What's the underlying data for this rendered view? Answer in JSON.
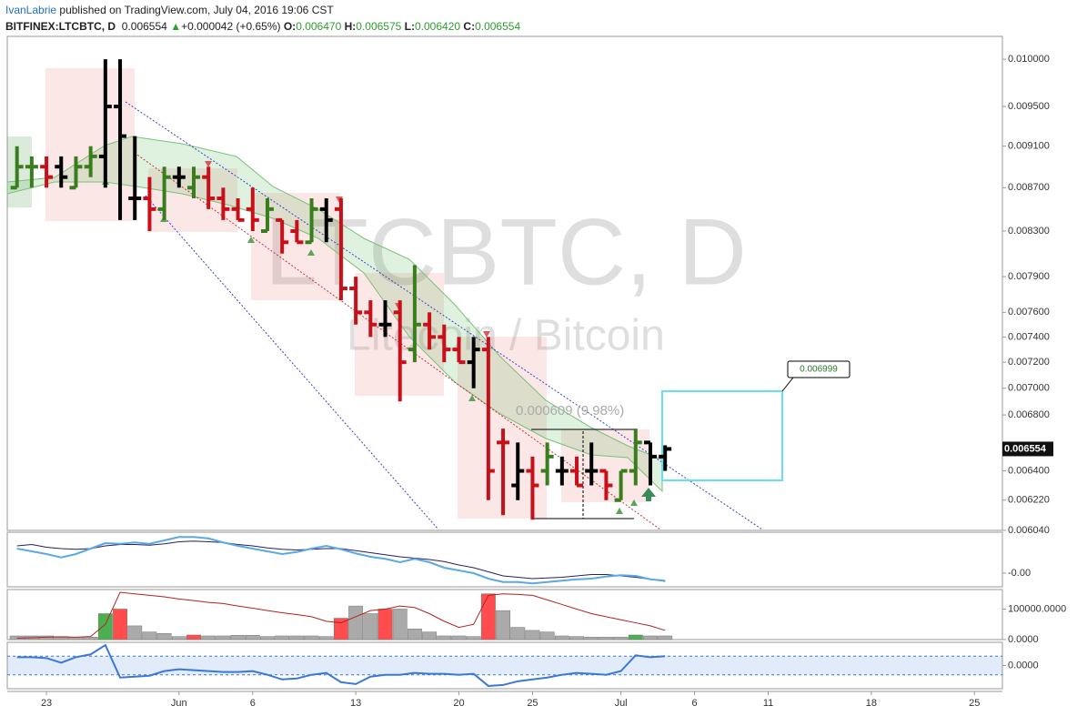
{
  "header": {
    "author": "IvanLabrie",
    "published": "published on TradingView.com, July 04, 2016 19:06 CST"
  },
  "legend": {
    "symbol": "BITFINEX:LTCBTC, D",
    "last": "0.006554",
    "change": "+0.000042 (+0.65%)",
    "open_label": "O:",
    "open": "0.006470",
    "high_label": "H:",
    "high": "0.006575",
    "low_label": "L:",
    "low": "0.006420",
    "close_label": "C:",
    "close": "0.006554"
  },
  "chart_data": [
    {
      "type": "ohlc",
      "watermark": "LTCBTC, D",
      "watermark_sub": "Litecoin / Bitcoin",
      "log": true,
      "x": [
        -2,
        -1,
        0,
        1,
        2,
        3,
        4,
        5,
        6,
        7,
        8,
        9,
        10,
        11,
        12,
        13,
        14,
        15,
        16,
        17,
        18,
        19,
        20,
        21,
        22,
        23,
        24,
        25,
        26,
        27,
        28,
        29,
        30,
        31,
        32,
        33,
        34,
        35,
        36,
        37,
        38,
        39,
        40,
        41,
        42
      ],
      "open": [
        0.0087,
        0.0089,
        0.0089,
        0.0089,
        0.0087,
        0.0089,
        0.009,
        0.0095,
        0.0086,
        0.0086,
        0.0085,
        0.0088,
        0.0087,
        0.0088,
        0.0086,
        0.0085,
        0.0085,
        0.0083,
        0.0084,
        0.0083,
        0.0082,
        0.0085,
        0.0085,
        0.0078,
        0.0076,
        0.0075,
        0.0076,
        0.0073,
        0.0075,
        0.0074,
        0.0073,
        0.0072,
        0.0073,
        0.0066,
        0.0063,
        0.0064,
        0.0064,
        0.0064,
        0.0064,
        0.0064,
        0.0064,
        0.0062,
        0.0064,
        0.0066,
        0.0065
      ],
      "high": [
        0.0091,
        0.009,
        0.009,
        0.009,
        0.009,
        0.0091,
        0.01,
        0.01,
        0.0092,
        0.0088,
        0.0089,
        0.0089,
        0.0089,
        0.0089,
        0.0087,
        0.0086,
        0.0087,
        0.0086,
        0.0084,
        0.0084,
        0.0086,
        0.0086,
        0.0086,
        0.0079,
        0.0077,
        0.0077,
        0.0077,
        0.008,
        0.0076,
        0.0075,
        0.0074,
        0.0074,
        0.0074,
        0.0067,
        0.0066,
        0.0065,
        0.0066,
        0.0065,
        0.0065,
        0.0066,
        0.0064,
        0.0064,
        0.0067,
        0.0066,
        0.00658
      ],
      "low": [
        0.0087,
        0.0087,
        0.0087,
        0.0087,
        0.0087,
        0.0088,
        0.0087,
        0.0084,
        0.0084,
        0.0083,
        0.0084,
        0.0087,
        0.0086,
        0.0085,
        0.0084,
        0.0084,
        0.0083,
        0.0083,
        0.0081,
        0.0082,
        0.0082,
        0.0082,
        0.0077,
        0.0075,
        0.0074,
        0.0074,
        0.0069,
        0.0072,
        0.0073,
        0.0072,
        0.0072,
        0.007,
        0.0062,
        0.0061,
        0.0062,
        0.00607,
        0.0063,
        0.0063,
        0.0063,
        0.0063,
        0.0062,
        0.0062,
        0.0063,
        0.0063,
        0.0064
      ],
      "close": [
        0.0089,
        0.0089,
        0.0088,
        0.0088,
        0.0089,
        0.009,
        0.0095,
        0.0092,
        0.0086,
        0.0085,
        0.0088,
        0.0088,
        0.0088,
        0.0086,
        0.0085,
        0.0084,
        0.0084,
        0.0085,
        0.0082,
        0.0082,
        0.0085,
        0.0084,
        0.0078,
        0.0076,
        0.0075,
        0.0075,
        0.0072,
        0.0075,
        0.0074,
        0.0073,
        0.0072,
        0.0073,
        0.0064,
        0.0066,
        0.0064,
        0.0063,
        0.0065,
        0.0064,
        0.0063,
        0.0064,
        0.0063,
        0.0064,
        0.0066,
        0.0065,
        0.006554
      ],
      "colors": [
        "#3a7d1e",
        "#3a7d1e",
        "#c8101a",
        "#000000",
        "#3a7d1e",
        "#3a7d1e",
        "#000000",
        "#000000",
        "#000000",
        "#c8101a",
        "#3a7d1e",
        "#000000",
        "#3a7d1e",
        "#c8101a",
        "#c8101a",
        "#c8101a",
        "#c8101a",
        "#3a7d1e",
        "#c8101a",
        "#c8101a",
        "#3a7d1e",
        "#000000",
        "#c8101a",
        "#c8101a",
        "#c8101a",
        "#000000",
        "#c8101a",
        "#3a7d1e",
        "#c8101a",
        "#c8101a",
        "#c8101a",
        "#000000",
        "#c8101a",
        "#c8101a",
        "#000000",
        "#c8101a",
        "#3a7d1e",
        "#000000",
        "#c8101a",
        "#000000",
        "#c8101a",
        "#3a7d1e",
        "#3a7d1e",
        "#000000",
        "#000000"
      ],
      "ylim": [
        0.006,
        0.0102
      ],
      "yticks": [
        {
          "value": 0.01,
          "label": "0.010000"
        },
        {
          "value": 0.0095,
          "label": "0.009500"
        },
        {
          "value": 0.0091,
          "label": "0.009100"
        },
        {
          "value": 0.0087,
          "label": "0.008700"
        },
        {
          "value": 0.0083,
          "label": "0.008300"
        },
        {
          "value": 0.0079,
          "label": "0.007900"
        },
        {
          "value": 0.0076,
          "label": "0.007600"
        },
        {
          "value": 0.0074,
          "label": "0.007400"
        },
        {
          "value": 0.0072,
          "label": "0.007200"
        },
        {
          "value": 0.007,
          "label": "0.007000"
        },
        {
          "value": 0.0068,
          "label": "0.006800"
        },
        {
          "value": 0.0064,
          "label": "0.006400"
        },
        {
          "value": 0.0062,
          "label": "0.006220"
        },
        {
          "value": 0.006,
          "label": "0.006040"
        }
      ],
      "xlim": [
        -2.66,
        64.9
      ],
      "xticks": [
        {
          "value": 0,
          "label": "23"
        },
        {
          "value": 9,
          "label": "Jun"
        },
        {
          "value": 14,
          "label": "6"
        },
        {
          "value": 21,
          "label": "13"
        },
        {
          "value": 28,
          "label": "20"
        },
        {
          "value": 33,
          "label": "25"
        },
        {
          "value": 39,
          "label": "Jul"
        },
        {
          "value": 44,
          "label": "6"
        },
        {
          "value": 49,
          "label": "11"
        },
        {
          "value": 56,
          "label": "18"
        },
        {
          "value": 63,
          "label": "25"
        }
      ],
      "price_label": {
        "value": 0.006554,
        "label": "0.006554"
      },
      "measure": "0.000609 (9.98%)",
      "target": {
        "value": 0.006999,
        "label": "0.006999"
      }
    },
    {
      "type": "line",
      "x": [
        -2,
        -1,
        0,
        1,
        2,
        3,
        4,
        5,
        6,
        7,
        8,
        9,
        10,
        11,
        12,
        13,
        14,
        15,
        16,
        17,
        18,
        19,
        20,
        21,
        22,
        23,
        24,
        25,
        26,
        27,
        28,
        29,
        30,
        31,
        32,
        33,
        34,
        35,
        36,
        37,
        38,
        39,
        40,
        41,
        42
      ],
      "series": [
        {
          "color": "#2a1e5c",
          "values": [
            0.04,
            0.042,
            0.038,
            0.036,
            0.035,
            0.036,
            0.04,
            0.042,
            0.042,
            0.041,
            0.043,
            0.046,
            0.047,
            0.046,
            0.045,
            0.042,
            0.04,
            0.037,
            0.035,
            0.034,
            0.035,
            0.036,
            0.036,
            0.033,
            0.03,
            0.027,
            0.024,
            0.022,
            0.02,
            0.017,
            0.012,
            0.008,
            0.002,
            -0.004,
            -0.006,
            -0.008,
            -0.007,
            -0.006,
            -0.004,
            -0.002,
            -0.002,
            -0.004,
            -0.006,
            -0.009,
            -0.012
          ]
        },
        {
          "color": "#5aa9e6",
          "values": [
            0.036,
            0.032,
            0.028,
            0.023,
            0.028,
            0.036,
            0.044,
            0.043,
            0.045,
            0.043,
            0.048,
            0.053,
            0.053,
            0.051,
            0.045,
            0.04,
            0.036,
            0.032,
            0.028,
            0.031,
            0.036,
            0.04,
            0.035,
            0.029,
            0.024,
            0.021,
            0.016,
            0.021,
            0.016,
            0.008,
            0.004,
            0,
            -0.008,
            -0.013,
            -0.013,
            -0.015,
            -0.013,
            -0.011,
            -0.009,
            -0.008,
            -0.005,
            -0.003,
            -0.004,
            -0.009,
            -0.011
          ]
        }
      ],
      "ylim": [
        -0.02,
        0.06
      ],
      "yticks": [
        {
          "value": 0,
          "label": "-0.00"
        }
      ]
    },
    {
      "type": "bar",
      "x": [
        -2,
        -1,
        0,
        1,
        2,
        3,
        4,
        5,
        6,
        7,
        8,
        9,
        10,
        11,
        12,
        13,
        14,
        15,
        16,
        17,
        18,
        19,
        20,
        21,
        22,
        23,
        24,
        25,
        26,
        27,
        28,
        29,
        30,
        31,
        32,
        33,
        34,
        35,
        36,
        37,
        38,
        39,
        40,
        41,
        42
      ],
      "values": [
        12000,
        12000,
        12000,
        10000,
        8000,
        8000,
        85000,
        100000,
        45000,
        25000,
        20000,
        10000,
        15000,
        12000,
        12000,
        14000,
        14000,
        10000,
        12000,
        12000,
        12000,
        10000,
        70000,
        110000,
        85000,
        100000,
        100000,
        35000,
        25000,
        12000,
        12000,
        10000,
        150000,
        95000,
        40000,
        30000,
        25000,
        12000,
        10000,
        8000,
        8000,
        8000,
        15000,
        12000,
        12000
      ],
      "colors": [
        "#aaaaaa",
        "#aaaaaa",
        "#aaaaaa",
        "#aaaaaa",
        "#aaaaaa",
        "#aaaaaa",
        "#4caf50",
        "#ff4d4d",
        "#aaaaaa",
        "#aaaaaa",
        "#aaaaaa",
        "#aaaaaa",
        "#ff4d4d",
        "#aaaaaa",
        "#aaaaaa",
        "#aaaaaa",
        "#aaaaaa",
        "#aaaaaa",
        "#aaaaaa",
        "#aaaaaa",
        "#aaaaaa",
        "#aaaaaa",
        "#ff4d4d",
        "#aaaaaa",
        "#aaaaaa",
        "#ff4d4d",
        "#aaaaaa",
        "#aaaaaa",
        "#aaaaaa",
        "#aaaaaa",
        "#aaaaaa",
        "#aaaaaa",
        "#ff4d4d",
        "#aaaaaa",
        "#aaaaaa",
        "#aaaaaa",
        "#aaaaaa",
        "#aaaaaa",
        "#aaaaaa",
        "#aaaaaa",
        "#aaaaaa",
        "#aaaaaa",
        "#4caf50",
        "#aaaaaa",
        "#aaaaaa"
      ],
      "ma": {
        "color": "#b22222",
        "values": [
          5000,
          6000,
          8000,
          9000,
          8000,
          10000,
          50000,
          155000,
          150000,
          145000,
          140000,
          133000,
          128000,
          122000,
          118000,
          110000,
          103000,
          95000,
          88000,
          82000,
          75000,
          60000,
          55000,
          75000,
          95000,
          100000,
          110000,
          105000,
          85000,
          60000,
          40000,
          50000,
          145000,
          150000,
          148000,
          145000,
          130000,
          115000,
          100000,
          85000,
          75000,
          65000,
          55000,
          45000,
          30000
        ]
      },
      "ylim": [
        0,
        164000
      ],
      "yticks": [
        {
          "value": 100000,
          "label": "100000.0000"
        },
        {
          "value": 0,
          "label": "0.0000"
        }
      ]
    },
    {
      "type": "line",
      "x": [
        -2,
        -1,
        0,
        1,
        2,
        3,
        4,
        5,
        6,
        7,
        8,
        9,
        10,
        11,
        12,
        13,
        14,
        15,
        16,
        17,
        18,
        19,
        20,
        21,
        22,
        23,
        24,
        25,
        26,
        27,
        28,
        29,
        30,
        31,
        32,
        33,
        34,
        35,
        36,
        37,
        38,
        39,
        40,
        41,
        42
      ],
      "series": [
        {
          "color": "#3a78d8",
          "values": [
            0.009,
            0.009,
            0.008,
            0.003,
            0.009,
            0.012,
            0.022,
            -0.013,
            -0.012,
            -0.011,
            -0.006,
            -0.004,
            -0.005,
            -0.006,
            -0.007,
            -0.007,
            -0.006,
            -0.01,
            -0.015,
            -0.014,
            -0.01,
            -0.008,
            -0.018,
            -0.02,
            -0.012,
            -0.01,
            -0.01,
            -0.008,
            -0.009,
            -0.009,
            -0.01,
            -0.009,
            -0.022,
            -0.021,
            -0.017,
            -0.015,
            -0.013,
            -0.01,
            -0.008,
            -0.009,
            -0.01,
            -0.006,
            0.011,
            0.009,
            0.01
          ]
        }
      ],
      "levels": [
        0.01,
        -0.01
      ],
      "ylim": [
        -0.025,
        0.025
      ],
      "yticks": [
        {
          "value": 0,
          "label": "0.0000"
        }
      ]
    }
  ]
}
